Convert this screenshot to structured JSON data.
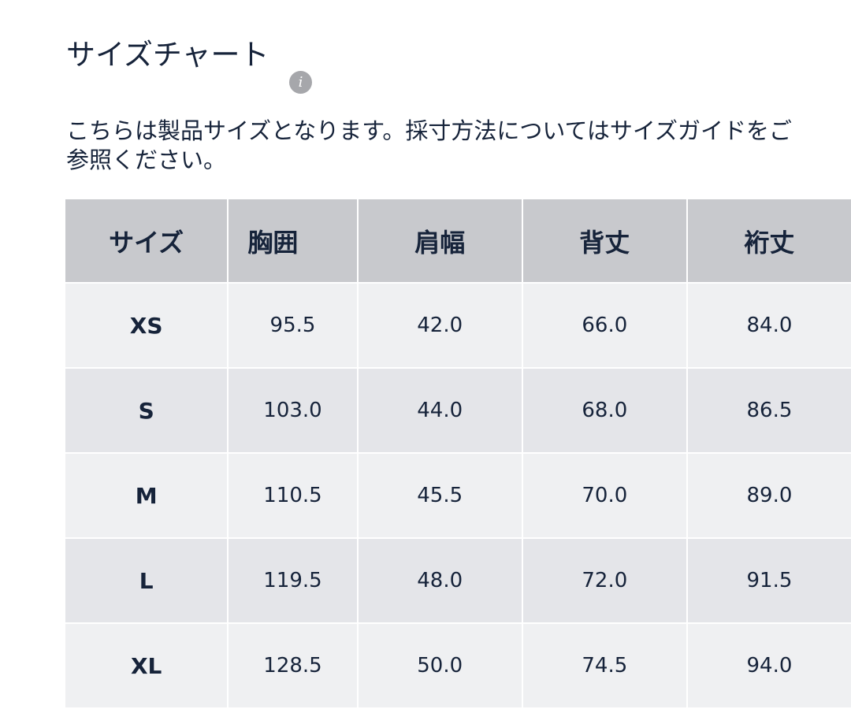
{
  "title": "サイズチャート",
  "info_icon": "info-icon",
  "description": "こちらは製品サイズとなります。採寸方法についてはサイズガイドをご参照ください。",
  "table": {
    "headers": [
      "サイズ",
      "胸囲",
      "肩幅",
      "背丈",
      "裄丈"
    ],
    "rows": [
      [
        "XS",
        "95.5",
        "42.0",
        "66.0",
        "84.0"
      ],
      [
        "S",
        "103.0",
        "44.0",
        "68.0",
        "86.5"
      ],
      [
        "M",
        "110.5",
        "45.5",
        "70.0",
        "89.0"
      ],
      [
        "L",
        "119.5",
        "48.0",
        "72.0",
        "91.5"
      ],
      [
        "XL",
        "128.5",
        "50.0",
        "74.5",
        "94.0"
      ]
    ]
  },
  "colors": {
    "text": "#16233a",
    "header_bg": "#c8c9cd",
    "row_light": "#eff0f2",
    "row_dark": "#e4e5e9"
  }
}
